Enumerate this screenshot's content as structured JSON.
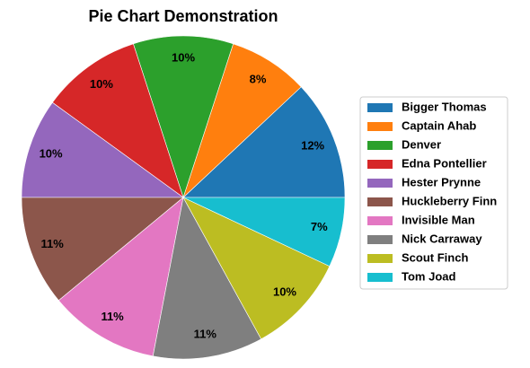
{
  "chart_data": {
    "type": "pie",
    "title": "Pie Chart Demonstration",
    "legend_position": "right",
    "start_angle": 0,
    "direction": "counterclockwise",
    "slices": [
      {
        "label": "Bigger Thomas",
        "value": 12,
        "display": "12%",
        "color": "#1f77b4"
      },
      {
        "label": "Captain Ahab",
        "value": 8,
        "display": "8%",
        "color": "#ff7f0e"
      },
      {
        "label": "Denver",
        "value": 10,
        "display": "10%",
        "color": "#2ca02c"
      },
      {
        "label": "Edna Pontellier",
        "value": 10,
        "display": "10%",
        "color": "#d62728"
      },
      {
        "label": "Hester Prynne",
        "value": 10,
        "display": "10%",
        "color": "#9467bd"
      },
      {
        "label": "Huckleberry Finn",
        "value": 11,
        "display": "11%",
        "color": "#8c564b"
      },
      {
        "label": "Invisible Man",
        "value": 11,
        "display": "11%",
        "color": "#e377c2"
      },
      {
        "label": "Nick Carraway",
        "value": 11,
        "display": "11%",
        "color": "#7f7f7f"
      },
      {
        "label": "Scout Finch",
        "value": 10,
        "display": "10%",
        "color": "#bcbd22"
      },
      {
        "label": "Tom Joad",
        "value": 7,
        "display": "7%",
        "color": "#17becf"
      }
    ]
  }
}
